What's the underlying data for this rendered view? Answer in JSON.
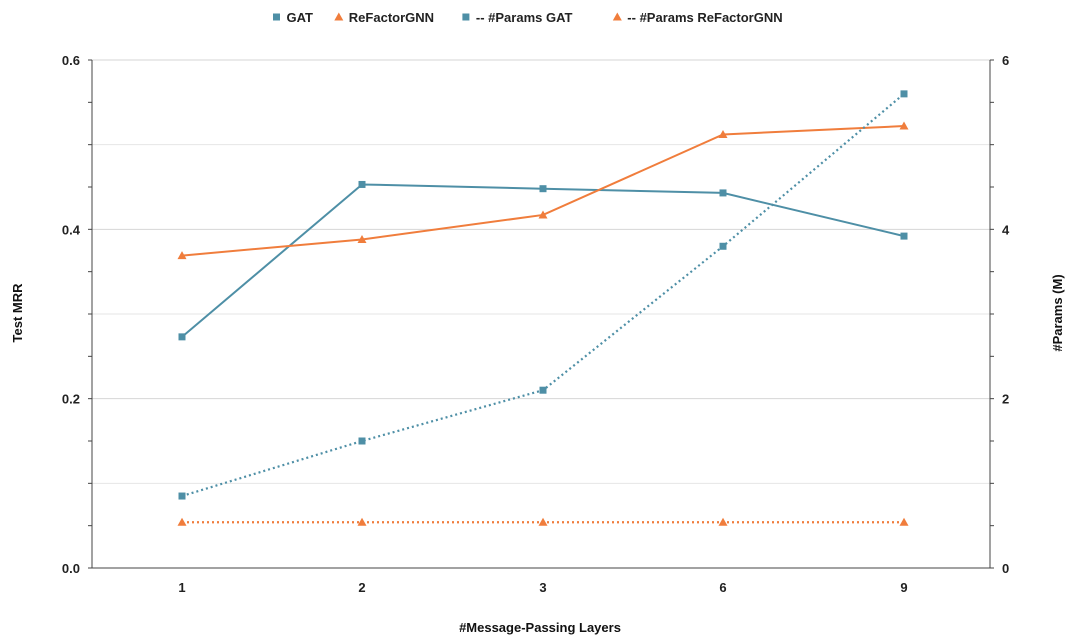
{
  "chart_data": {
    "type": "line",
    "xlabel": "#Message-Passing Layers",
    "ylabel": "Test MRR",
    "y2label": "#Params (M)",
    "categories": [
      "1",
      "2",
      "3",
      "6",
      "9"
    ],
    "ylim": [
      0,
      0.6
    ],
    "y2lim": [
      0,
      6
    ],
    "yticks": [
      "0.0",
      "0.2",
      "0.4",
      "0.6"
    ],
    "y2ticks": [
      "0",
      "2",
      "4",
      "6"
    ],
    "grid": true,
    "legend_position": "top",
    "series": [
      {
        "name": "GAT",
        "axis": "left",
        "style": "solid",
        "marker": "square",
        "color": "#4e8fa6",
        "values": [
          0.273,
          0.453,
          0.448,
          0.443,
          0.392
        ]
      },
      {
        "name": "ReFactorGNN",
        "axis": "left",
        "style": "solid",
        "marker": "triangle",
        "color": "#f07d3c",
        "values": [
          0.369,
          0.388,
          0.417,
          0.512,
          0.522
        ]
      },
      {
        "name": "-- #Params GAT",
        "axis": "right",
        "style": "dotted",
        "marker": "square",
        "color": "#4e8fa6",
        "values": [
          0.85,
          1.5,
          2.1,
          3.8,
          5.6
        ]
      },
      {
        "name": "-- #Params ReFactorGNN",
        "axis": "right",
        "style": "dotted",
        "marker": "triangle",
        "color": "#f07d3c",
        "values": [
          0.54,
          0.54,
          0.54,
          0.54,
          0.54
        ]
      }
    ]
  }
}
